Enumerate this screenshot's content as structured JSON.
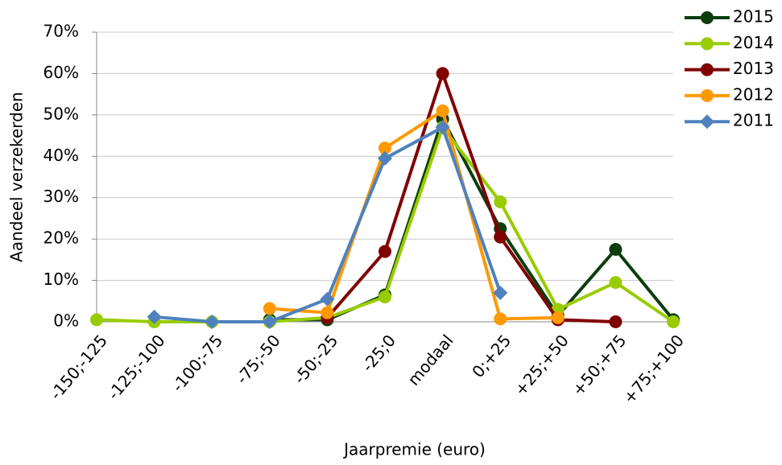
{
  "chart_data": {
    "type": "line",
    "x_label": "Jaarpremie (euro)",
    "y_label": "Aandeel verzekerden",
    "categories": [
      "-150;-125",
      "-125;-100",
      "-100;-75",
      "-75;-50",
      "-50;-25",
      "-25;0",
      "modaal",
      "0;+25",
      "+25;+50",
      "+50;+75",
      "+75;+100"
    ],
    "ylim": [
      0,
      70
    ],
    "yticks": [
      {
        "value": 0,
        "label": "0%"
      },
      {
        "value": 10,
        "label": "10%"
      },
      {
        "value": 20,
        "label": "20%"
      },
      {
        "value": 30,
        "label": "30%"
      },
      {
        "value": 40,
        "label": "40%"
      },
      {
        "value": 50,
        "label": "50%"
      },
      {
        "value": 60,
        "label": "60%"
      },
      {
        "value": 70,
        "label": "70%"
      }
    ],
    "grid": true,
    "legend": "right",
    "series": [
      {
        "name": "2015",
        "color": "#0d3d0d",
        "marker": "circle",
        "values": [
          null,
          null,
          null,
          0.5,
          0.5,
          6.5,
          49,
          22.5,
          1.5,
          17.5,
          0.5
        ]
      },
      {
        "name": "2014",
        "color": "#99cc00",
        "marker": "circle",
        "values": [
          0.5,
          0,
          0,
          0,
          1,
          6,
          47,
          29,
          3,
          9.5,
          0
        ]
      },
      {
        "name": "2013",
        "color": "#800000",
        "marker": "circle",
        "values": [
          null,
          null,
          null,
          null,
          1,
          17,
          60,
          20.5,
          0.5,
          0,
          null
        ]
      },
      {
        "name": "2012",
        "color": "#ff9900",
        "marker": "circle",
        "values": [
          null,
          null,
          null,
          3.2,
          2.2,
          42,
          51,
          0.7,
          1,
          null,
          null
        ]
      },
      {
        "name": "2011",
        "color": "#4f81bd",
        "marker": "diamond",
        "values": [
          null,
          1.2,
          0,
          0,
          5.5,
          39.5,
          47,
          7,
          null,
          null,
          null
        ]
      }
    ]
  }
}
